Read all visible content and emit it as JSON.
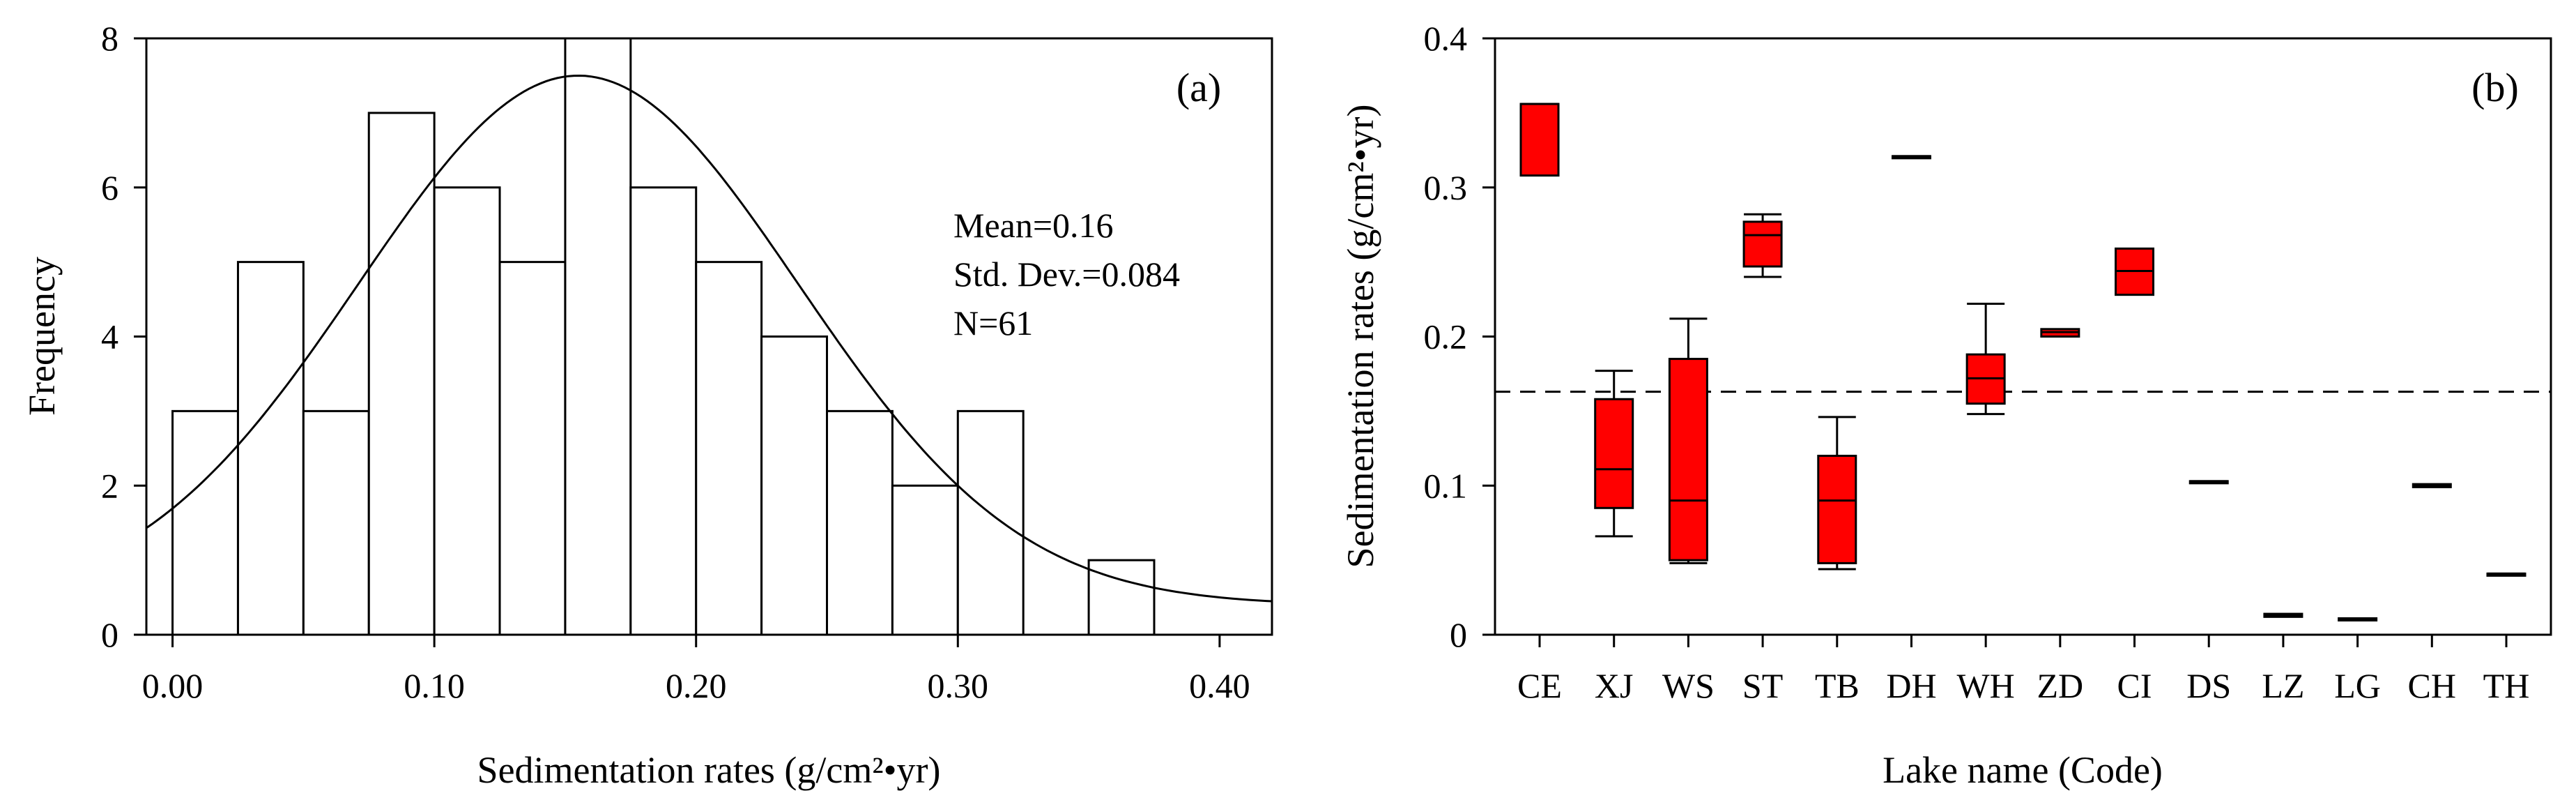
{
  "chart_data": [
    {
      "panel_label": "(a)",
      "type": "bar",
      "subtype": "histogram-with-normal-curve",
      "xlabel": "Sedimentation rates (g/cm²•yr)",
      "ylabel": "Frequency",
      "xlim": [
        -0.01,
        0.42
      ],
      "ylim": [
        0,
        8
      ],
      "x_ticks": [
        0.0,
        0.1,
        0.2,
        0.3,
        0.4
      ],
      "x_tick_labels": [
        "0.00",
        "0.10",
        "0.20",
        "0.30",
        "0.40"
      ],
      "y_ticks": [
        0,
        2,
        4,
        6,
        8
      ],
      "y_tick_labels": [
        "0",
        "2",
        "4",
        "6",
        "8"
      ],
      "bin_width": 0.025,
      "bins": [
        {
          "start": 0.0,
          "end": 0.025,
          "count": 3
        },
        {
          "start": 0.025,
          "end": 0.05,
          "count": 5
        },
        {
          "start": 0.05,
          "end": 0.075,
          "count": 3
        },
        {
          "start": 0.075,
          "end": 0.1,
          "count": 7
        },
        {
          "start": 0.1,
          "end": 0.125,
          "count": 6
        },
        {
          "start": 0.125,
          "end": 0.15,
          "count": 5
        },
        {
          "start": 0.15,
          "end": 0.175,
          "count": 8
        },
        {
          "start": 0.175,
          "end": 0.2,
          "count": 6
        },
        {
          "start": 0.2,
          "end": 0.225,
          "count": 5
        },
        {
          "start": 0.225,
          "end": 0.25,
          "count": 4
        },
        {
          "start": 0.25,
          "end": 0.275,
          "count": 3
        },
        {
          "start": 0.275,
          "end": 0.3,
          "count": 2
        },
        {
          "start": 0.3,
          "end": 0.325,
          "count": 3
        },
        {
          "start": 0.35,
          "end": 0.375,
          "count": 1
        }
      ],
      "normal_curve": {
        "mean": 0.155,
        "sd": 0.084,
        "peak": 7.5,
        "baseline": 0.4
      },
      "stats_text": [
        "Mean=0.16",
        "Std. Dev.=0.084",
        "N=61"
      ]
    },
    {
      "panel_label": "(b)",
      "type": "box",
      "xlabel": "Lake name (Code)",
      "ylabel": "Sedimentation rates (g/cm²•yr)",
      "ylim": [
        0,
        0.4
      ],
      "y_ticks": [
        0,
        0.1,
        0.2,
        0.3,
        0.4
      ],
      "y_tick_labels": [
        "0",
        "0.1",
        "0.2",
        "0.3",
        "0.4"
      ],
      "categories": [
        "CE",
        "XJ",
        "WS",
        "ST",
        "TB",
        "DH",
        "WH",
        "ZD",
        "CI",
        "DS",
        "LZ",
        "LG",
        "CH",
        "TH"
      ],
      "boxes": [
        {
          "min": 0.308,
          "q1": 0.308,
          "median": 0.356,
          "q3": 0.356,
          "max": 0.356
        },
        {
          "min": 0.066,
          "q1": 0.085,
          "median": 0.111,
          "q3": 0.158,
          "max": 0.177
        },
        {
          "min": 0.048,
          "q1": 0.05,
          "median": 0.09,
          "q3": 0.185,
          "max": 0.212
        },
        {
          "min": 0.24,
          "q1": 0.247,
          "median": 0.268,
          "q3": 0.277,
          "max": 0.282
        },
        {
          "min": 0.044,
          "q1": 0.048,
          "median": 0.09,
          "q3": 0.12,
          "max": 0.146
        },
        {
          "min": 0.321,
          "q1": 0.321,
          "median": 0.321,
          "q3": 0.321,
          "max": 0.321
        },
        {
          "min": 0.148,
          "q1": 0.155,
          "median": 0.172,
          "q3": 0.188,
          "max": 0.222
        },
        {
          "min": 0.2,
          "q1": 0.2,
          "median": 0.203,
          "q3": 0.205,
          "max": 0.205
        },
        {
          "min": 0.228,
          "q1": 0.228,
          "median": 0.244,
          "q3": 0.259,
          "max": 0.259
        },
        {
          "min": 0.103,
          "q1": 0.103,
          "median": 0.103,
          "q3": 0.103,
          "max": 0.103
        },
        {
          "min": 0.012,
          "q1": 0.012,
          "median": 0.013,
          "q3": 0.014,
          "max": 0.014
        },
        {
          "min": 0.011,
          "q1": 0.011,
          "median": 0.011,
          "q3": 0.011,
          "max": 0.011
        },
        {
          "min": 0.099,
          "q1": 0.099,
          "median": 0.1,
          "q3": 0.101,
          "max": 0.101
        },
        {
          "min": 0.041,
          "q1": 0.041,
          "median": 0.041,
          "q3": 0.041,
          "max": 0.041
        }
      ],
      "reference_line": {
        "y": 0.163,
        "style": "dashed"
      },
      "box_color": "#ff0000"
    }
  ]
}
